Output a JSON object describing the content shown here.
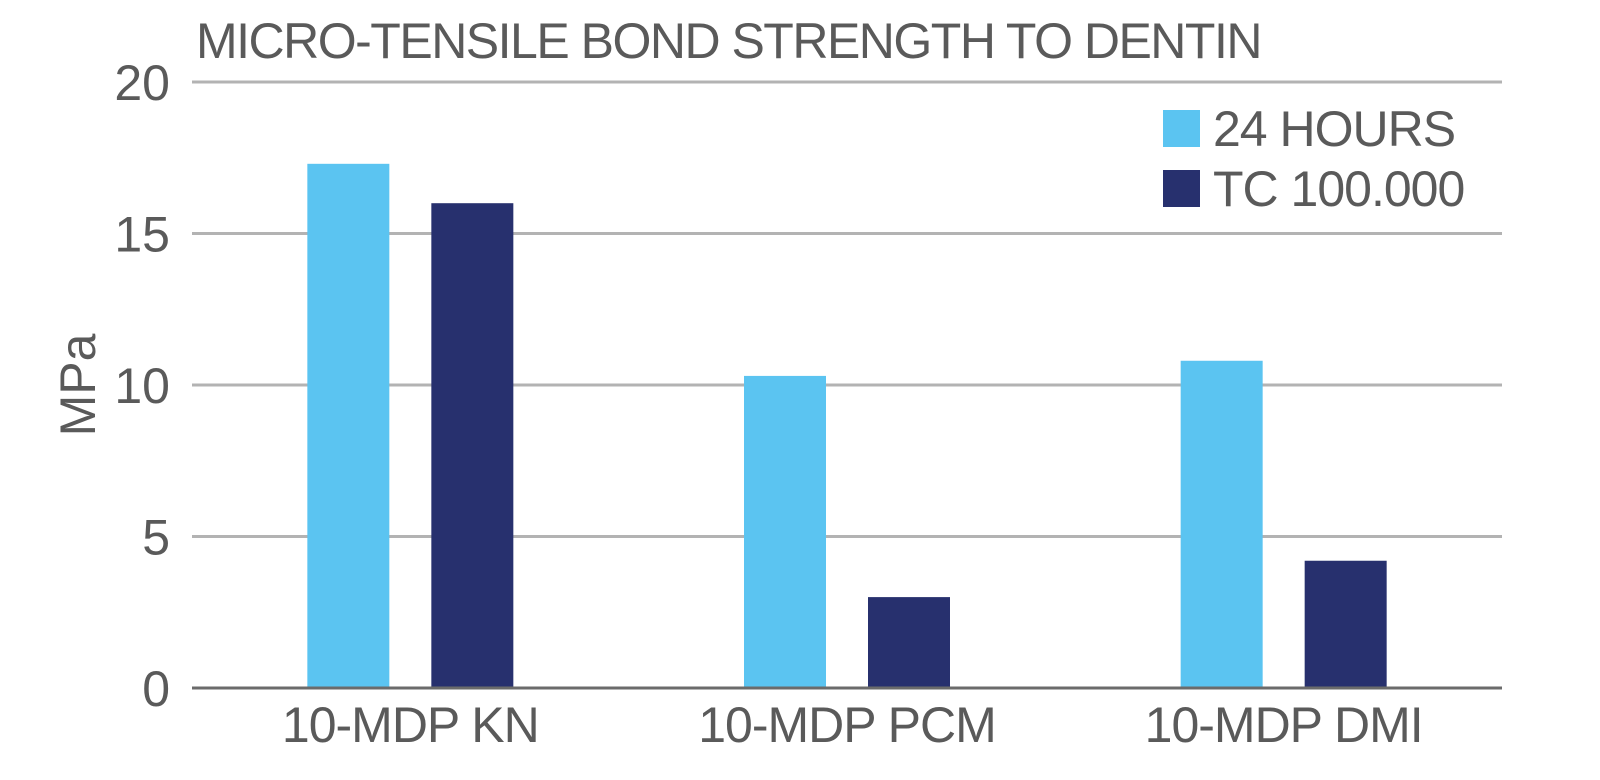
{
  "chart_data": {
    "type": "bar",
    "title": "MICRO-TENSILE BOND STRENGTH TO DENTIN",
    "xlabel": "",
    "ylabel": "MPa",
    "ylim": [
      0,
      20
    ],
    "yticks": [
      "0",
      "5",
      "10",
      "15",
      "20"
    ],
    "categories": [
      "10-MDP KN",
      "10-MDP PCM",
      "10-MDP DMI"
    ],
    "series": [
      {
        "name": "24 HOURS",
        "color": "#5bc4f1",
        "values": [
          17.3,
          10.3,
          10.8
        ]
      },
      {
        "name": "TC 100.000",
        "color": "#27306e",
        "values": [
          16.0,
          3.0,
          4.2
        ]
      }
    ],
    "grid": true,
    "legend_position": "top-right"
  }
}
